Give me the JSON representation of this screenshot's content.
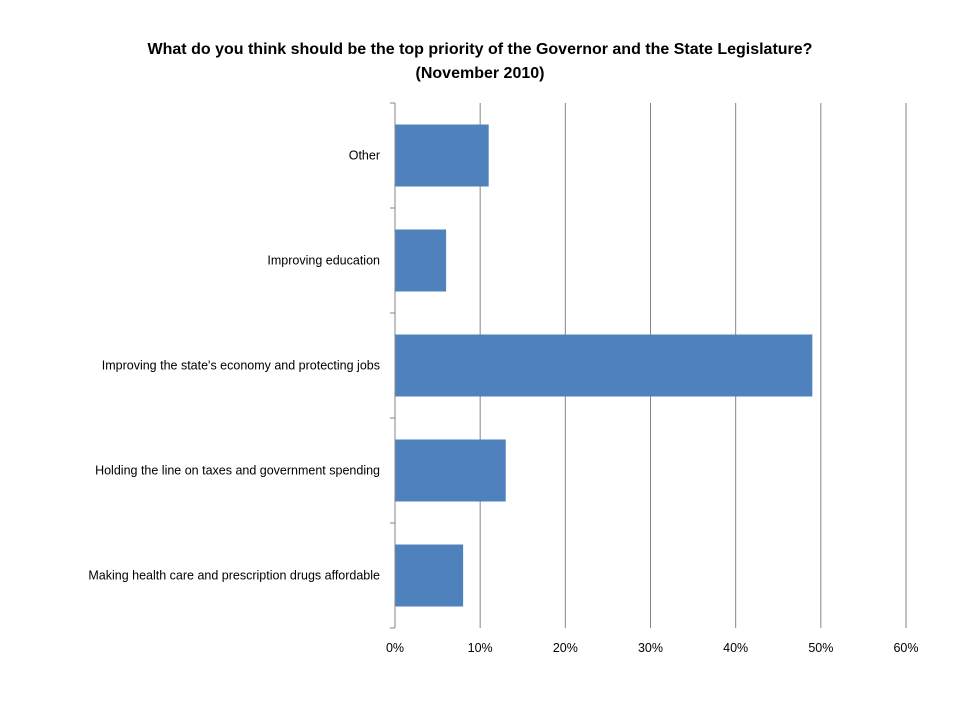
{
  "chart_data": {
    "type": "bar",
    "orientation": "horizontal",
    "title": "What do you think should be the top priority of the Governor and the State Legislature?",
    "subtitle": "(November 2010)",
    "categories": [
      "Making health care and prescription drugs affordable",
      "Holding the line on taxes and government spending",
      "Improving the state's economy and protecting jobs",
      "Improving education",
      "Other"
    ],
    "values": [
      8,
      13,
      49,
      6,
      11
    ],
    "xlim": [
      0,
      60
    ],
    "x_ticks": [
      0,
      10,
      20,
      30,
      40,
      50,
      60
    ],
    "x_tick_labels": [
      "0%",
      "10%",
      "20%",
      "30%",
      "40%",
      "50%",
      "60%"
    ],
    "grid": true,
    "legend": "none",
    "bar_color": "#4f81bd",
    "grid_color": "#868686"
  }
}
